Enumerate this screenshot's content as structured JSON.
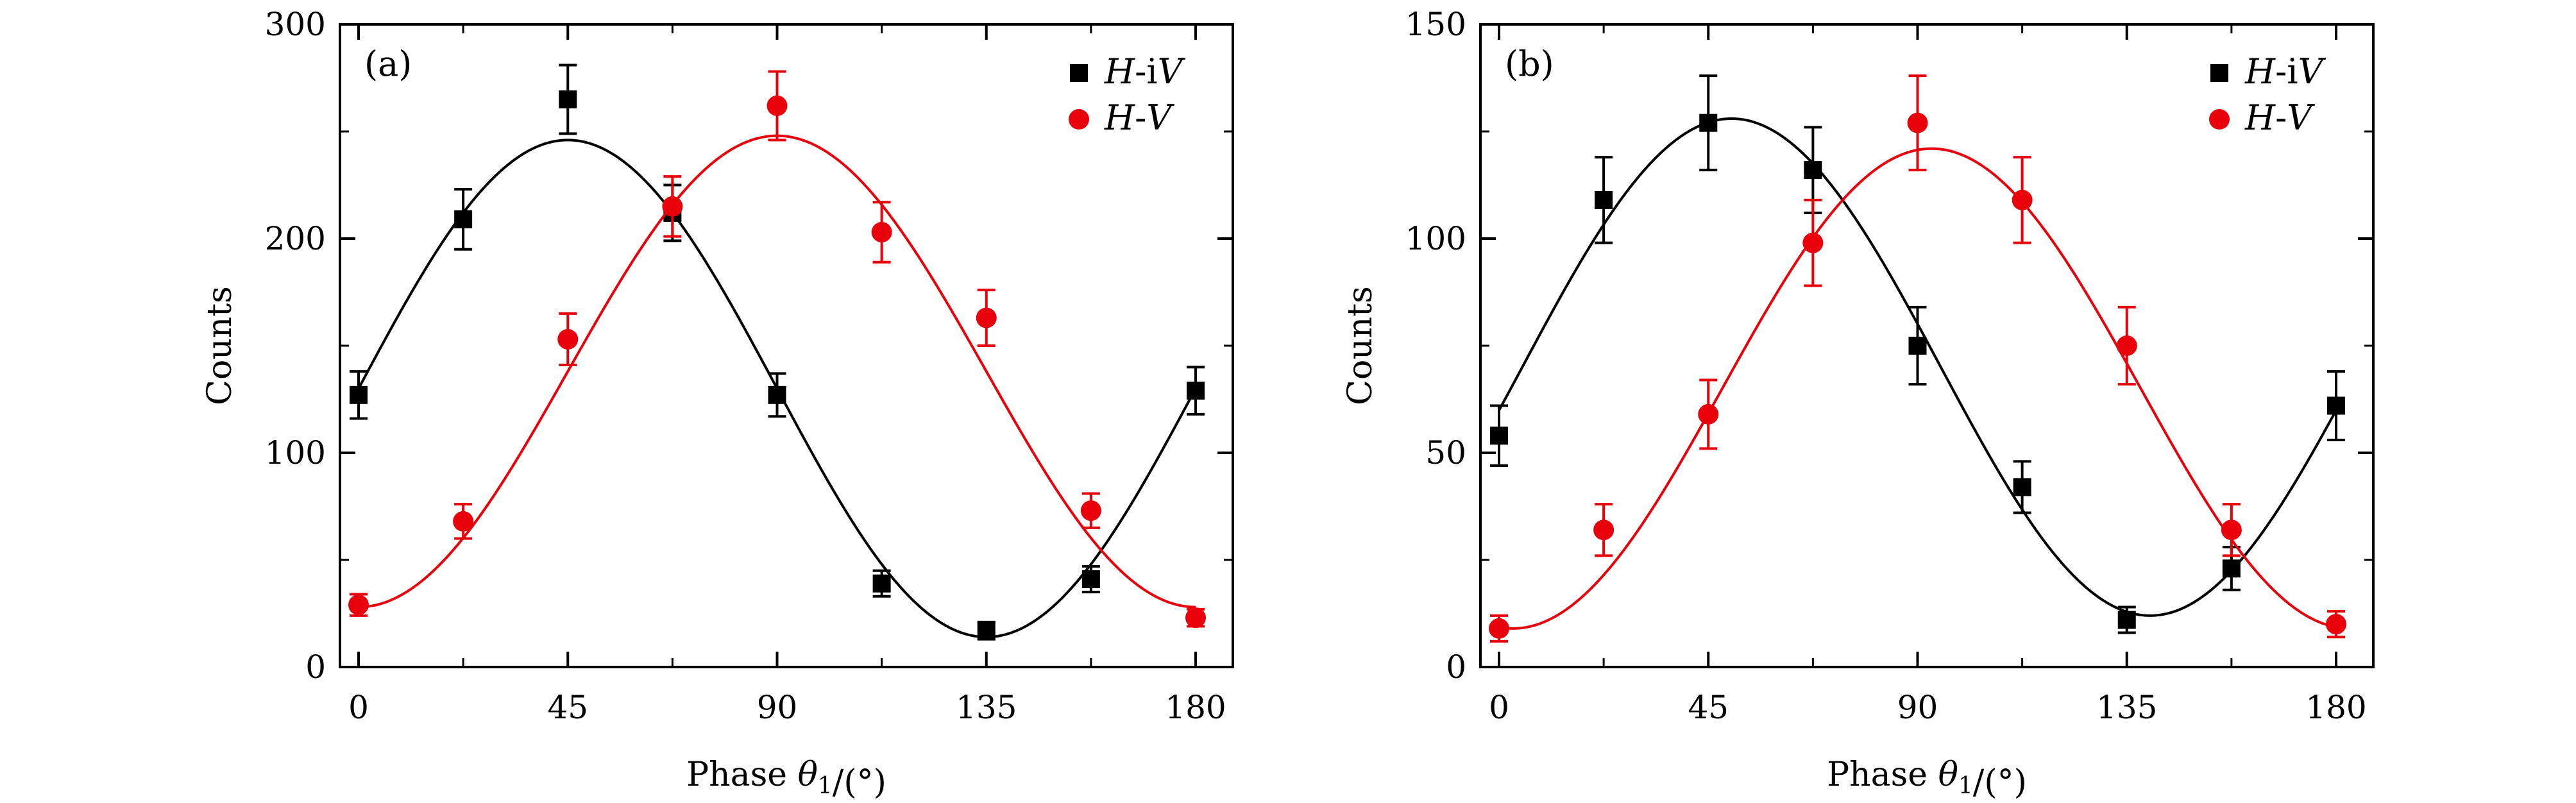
{
  "chart_data": [
    {
      "type": "scatter",
      "panel_label": "(a)",
      "xlabel": "Phase θ1/(°)",
      "ylabel": "Counts",
      "xlim": [
        -4,
        188
      ],
      "ylim": [
        0,
        300
      ],
      "xticks": [
        0,
        45,
        90,
        135,
        180
      ],
      "yticks": [
        0,
        100,
        200,
        300
      ],
      "legend_position": "top-right",
      "x": [
        0,
        22.5,
        45,
        67.5,
        90,
        112.5,
        135,
        157.5,
        180
      ],
      "series": [
        {
          "name": "H-iV",
          "color": "#000000",
          "marker": "square",
          "values": [
            127,
            209,
            265,
            212,
            127,
            39,
            17,
            41,
            129
          ],
          "errors": [
            11,
            14,
            16,
            13,
            10,
            6,
            4,
            6,
            11
          ],
          "fit": {
            "offset": 130,
            "amplitude": 116,
            "peak_phase": 45
          }
        },
        {
          "name": "H-V",
          "color": "#e8000b",
          "marker": "circle",
          "values": [
            29,
            68,
            153,
            215,
            262,
            203,
            163,
            73,
            23
          ],
          "errors": [
            5,
            8,
            12,
            14,
            16,
            14,
            13,
            8,
            4
          ],
          "fit": {
            "offset": 138,
            "amplitude": 110,
            "peak_phase": 90
          }
        }
      ]
    },
    {
      "type": "scatter",
      "panel_label": "(b)",
      "xlabel": "Phase θ1/(°)",
      "ylabel": "Counts",
      "xlim": [
        -4,
        188
      ],
      "ylim": [
        0,
        150
      ],
      "xticks": [
        0,
        45,
        90,
        135,
        180
      ],
      "yticks": [
        0,
        50,
        100,
        150
      ],
      "legend_position": "top-right",
      "x": [
        0,
        22.5,
        45,
        67.5,
        90,
        112.5,
        135,
        157.5,
        180
      ],
      "series": [
        {
          "name": "H-iV",
          "color": "#000000",
          "marker": "square",
          "values": [
            54,
            109,
            127,
            116,
            75,
            42,
            11,
            23,
            61
          ],
          "errors": [
            7,
            10,
            11,
            10,
            9,
            6,
            3,
            5,
            8
          ],
          "fit": {
            "offset": 70,
            "amplitude": 58,
            "peak_phase": 50
          }
        },
        {
          "name": "H-V",
          "color": "#e8000b",
          "marker": "circle",
          "values": [
            9,
            32,
            59,
            99,
            127,
            109,
            75,
            32,
            10
          ],
          "errors": [
            3,
            6,
            8,
            10,
            11,
            10,
            9,
            6,
            3
          ],
          "fit": {
            "offset": 65,
            "amplitude": 56,
            "peak_phase": 93
          }
        }
      ]
    }
  ]
}
